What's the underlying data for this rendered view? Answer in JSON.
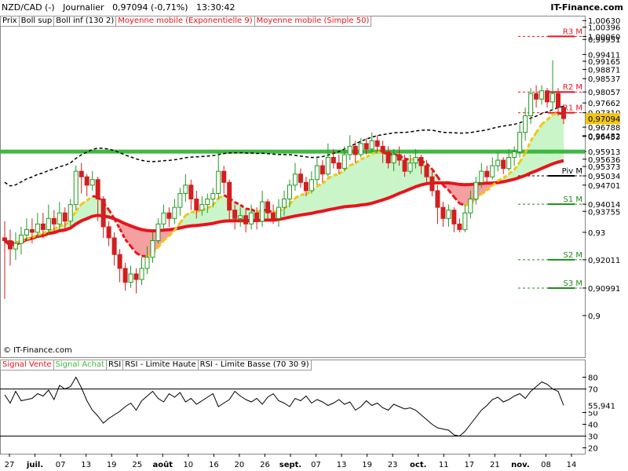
{
  "header": {
    "symbol": "NZD/CAD (-)",
    "period": "Journalier",
    "price_change": "0,97094 (-0,71%)",
    "time": "13:30:42",
    "site": "IT-Finance.com"
  },
  "legend_top": [
    "Prix",
    "Boll sup",
    "Boll inf (130 2)",
    "Moyenne mobile (Exponentielle 9)",
    "Moyenne mobile (Simple 50)"
  ],
  "legend_rsi": [
    "Signal Vente",
    "Signal Achat",
    "RSI",
    "RSI - Limite Haute",
    "RSI - Limite Basse (70 30 9)"
  ],
  "copyright": "© IT-Finance.com",
  "colors": {
    "up": "#1f9a1f",
    "down": "#d21f1f",
    "sma": "#e8141c",
    "support": "#3fb83f",
    "fill_green": "#c9f5c9",
    "fill_red": "#f5a0a0",
    "boll": "#000000",
    "ema_up": "#f2c70f"
  },
  "chart_data": [
    {
      "type": "candlestick",
      "title": "NZD/CAD (-) Journalier",
      "ylim": [
        0.885,
        1.0075
      ],
      "y_ticks": [
        {
          "value": 1.0063,
          "label": "1,00630"
        },
        {
          "value": 1.00396,
          "label": "1,00396"
        },
        {
          "value": 1.0006,
          "label": "1,00060"
        },
        {
          "value": 0.99951,
          "label": "0,99951"
        },
        {
          "value": 0.99411,
          "label": "0,99411"
        },
        {
          "value": 0.99165,
          "label": "0,99165"
        },
        {
          "value": 0.98871,
          "label": "0,98871"
        },
        {
          "value": 0.98537,
          "label": "0,98537"
        },
        {
          "value": 0.98057,
          "label": "0,98057"
        },
        {
          "value": 0.97662,
          "label": "0,97662"
        },
        {
          "value": 0.9731,
          "label": "0,97310"
        },
        {
          "value": 0.96788,
          "label": "0,96788"
        },
        {
          "value": 0.96482,
          "label": "0,96482"
        },
        {
          "value": 0.96453,
          "label": "0,96453"
        },
        {
          "value": 0.95913,
          "label": "0,95913"
        },
        {
          "value": 0.95636,
          "label": "0,95636"
        },
        {
          "value": 0.95373,
          "label": "0,95373"
        },
        {
          "value": 0.95034,
          "label": "0,95034"
        },
        {
          "value": 0.94701,
          "label": "0,94701"
        },
        {
          "value": 0.94014,
          "label": "0,94014"
        },
        {
          "value": 0.93755,
          "label": "0,93755"
        },
        {
          "value": 0.93,
          "label": "0,93"
        },
        {
          "value": 0.92011,
          "label": "0,92011"
        },
        {
          "value": 0.90991,
          "label": "0,90991"
        },
        {
          "value": 0.9,
          "label": "0,9"
        }
      ],
      "current_price": {
        "value": 0.97094,
        "label": "0,97094"
      },
      "support_line": 0.9591,
      "pivots": [
        {
          "label": "R3 M",
          "value": 1.0006,
          "color": "#e8141c"
        },
        {
          "label": "R2 M",
          "value": 0.98057,
          "color": "#e8141c"
        },
        {
          "label": "R1 M",
          "value": 0.9731,
          "color": "#e8141c"
        },
        {
          "label": "Piv M",
          "value": 0.95034,
          "color": "#000000"
        },
        {
          "label": "S1 M",
          "value": 0.94014,
          "color": "#1f8a1f"
        },
        {
          "label": "S2 M",
          "value": 0.92011,
          "color": "#1f8a1f"
        },
        {
          "label": "S3 M",
          "value": 0.90991,
          "color": "#1f8a1f"
        }
      ],
      "x_labels": [
        "27",
        "juil.",
        "07",
        "13",
        "19",
        "25",
        "août",
        "10",
        "16",
        "20",
        "26",
        "sept.",
        "07",
        "13",
        "19",
        "23",
        "oct.",
        "11",
        "17",
        "21",
        "nov.",
        "08",
        "14"
      ],
      "candles": [
        [
          0.928,
          0.927,
          0.934,
          0.906
        ],
        [
          0.927,
          0.924,
          0.931,
          0.918
        ],
        [
          0.924,
          0.926,
          0.93,
          0.92
        ],
        [
          0.926,
          0.929,
          0.932,
          0.922
        ],
        [
          0.929,
          0.931,
          0.935,
          0.927
        ],
        [
          0.931,
          0.93,
          0.935,
          0.926
        ],
        [
          0.93,
          0.933,
          0.937,
          0.928
        ],
        [
          0.933,
          0.931,
          0.937,
          0.928
        ],
        [
          0.931,
          0.935,
          0.94,
          0.929
        ],
        [
          0.935,
          0.933,
          0.938,
          0.93
        ],
        [
          0.933,
          0.937,
          0.941,
          0.931
        ],
        [
          0.937,
          0.934,
          0.939,
          0.931
        ],
        [
          0.934,
          0.94,
          0.942,
          0.932
        ],
        [
          0.94,
          0.952,
          0.954,
          0.938
        ],
        [
          0.952,
          0.95,
          0.955,
          0.944
        ],
        [
          0.95,
          0.947,
          0.951,
          0.943
        ],
        [
          0.947,
          0.949,
          0.952,
          0.945
        ],
        [
          0.949,
          0.942,
          0.95,
          0.934
        ],
        [
          0.942,
          0.932,
          0.943,
          0.928
        ],
        [
          0.932,
          0.928,
          0.934,
          0.925
        ],
        [
          0.928,
          0.922,
          0.93,
          0.918
        ],
        [
          0.922,
          0.917,
          0.924,
          0.912
        ],
        [
          0.917,
          0.912,
          0.919,
          0.909
        ],
        [
          0.912,
          0.915,
          0.918,
          0.91
        ],
        [
          0.915,
          0.913,
          0.917,
          0.908
        ],
        [
          0.913,
          0.917,
          0.921,
          0.911
        ],
        [
          0.917,
          0.921,
          0.925,
          0.915
        ],
        [
          0.921,
          0.927,
          0.93,
          0.919
        ],
        [
          0.927,
          0.933,
          0.935,
          0.926
        ],
        [
          0.933,
          0.937,
          0.94,
          0.931
        ],
        [
          0.937,
          0.935,
          0.939,
          0.932
        ],
        [
          0.935,
          0.939,
          0.942,
          0.933
        ],
        [
          0.939,
          0.944,
          0.946,
          0.936
        ],
        [
          0.944,
          0.947,
          0.951,
          0.941
        ],
        [
          0.947,
          0.942,
          0.949,
          0.938
        ],
        [
          0.942,
          0.938,
          0.945,
          0.935
        ],
        [
          0.938,
          0.94,
          0.943,
          0.936
        ],
        [
          0.94,
          0.942,
          0.944,
          0.937
        ],
        [
          0.942,
          0.944,
          0.946,
          0.939
        ],
        [
          0.944,
          0.952,
          0.959,
          0.942
        ],
        [
          0.952,
          0.948,
          0.954,
          0.944
        ],
        [
          0.948,
          0.938,
          0.949,
          0.934
        ],
        [
          0.938,
          0.935,
          0.94,
          0.931
        ],
        [
          0.935,
          0.936,
          0.939,
          0.932
        ],
        [
          0.936,
          0.933,
          0.938,
          0.93
        ],
        [
          0.933,
          0.937,
          0.94,
          0.931
        ],
        [
          0.937,
          0.934,
          0.939,
          0.931
        ],
        [
          0.934,
          0.941,
          0.945,
          0.932
        ],
        [
          0.941,
          0.937,
          0.942,
          0.934
        ],
        [
          0.937,
          0.935,
          0.94,
          0.933
        ],
        [
          0.935,
          0.939,
          0.942,
          0.932
        ],
        [
          0.939,
          0.942,
          0.945,
          0.936
        ],
        [
          0.942,
          0.947,
          0.949,
          0.939
        ],
        [
          0.947,
          0.951,
          0.955,
          0.945
        ],
        [
          0.951,
          0.948,
          0.953,
          0.946
        ],
        [
          0.948,
          0.945,
          0.95,
          0.943
        ],
        [
          0.945,
          0.949,
          0.952,
          0.944
        ],
        [
          0.949,
          0.954,
          0.957,
          0.947
        ],
        [
          0.954,
          0.951,
          0.956,
          0.948
        ],
        [
          0.951,
          0.957,
          0.962,
          0.95
        ],
        [
          0.957,
          0.955,
          0.96,
          0.953
        ],
        [
          0.955,
          0.953,
          0.958,
          0.951
        ],
        [
          0.953,
          0.958,
          0.961,
          0.952
        ],
        [
          0.958,
          0.961,
          0.965,
          0.956
        ],
        [
          0.961,
          0.958,
          0.963,
          0.955
        ],
        [
          0.958,
          0.962,
          0.964,
          0.957
        ],
        [
          0.962,
          0.96,
          0.964,
          0.958
        ],
        [
          0.96,
          0.963,
          0.966,
          0.959
        ],
        [
          0.963,
          0.961,
          0.965,
          0.959
        ],
        [
          0.961,
          0.959,
          0.963,
          0.955
        ],
        [
          0.959,
          0.955,
          0.961,
          0.953
        ],
        [
          0.955,
          0.958,
          0.96,
          0.952
        ],
        [
          0.958,
          0.956,
          0.961,
          0.954
        ],
        [
          0.956,
          0.952,
          0.958,
          0.95
        ],
        [
          0.952,
          0.955,
          0.958,
          0.951
        ],
        [
          0.955,
          0.957,
          0.96,
          0.953
        ],
        [
          0.957,
          0.954,
          0.958,
          0.951
        ],
        [
          0.954,
          0.95,
          0.956,
          0.948
        ],
        [
          0.95,
          0.945,
          0.952,
          0.943
        ],
        [
          0.945,
          0.939,
          0.947,
          0.933
        ],
        [
          0.939,
          0.935,
          0.941,
          0.932
        ],
        [
          0.935,
          0.938,
          0.94,
          0.932
        ],
        [
          0.938,
          0.933,
          0.939,
          0.93
        ],
        [
          0.933,
          0.931,
          0.935,
          0.93
        ],
        [
          0.931,
          0.937,
          0.94,
          0.93
        ],
        [
          0.937,
          0.942,
          0.945,
          0.935
        ],
        [
          0.942,
          0.948,
          0.95,
          0.94
        ],
        [
          0.948,
          0.952,
          0.955,
          0.946
        ],
        [
          0.952,
          0.95,
          0.954,
          0.948
        ],
        [
          0.95,
          0.954,
          0.957,
          0.949
        ],
        [
          0.954,
          0.956,
          0.959,
          0.952
        ],
        [
          0.956,
          0.953,
          0.957,
          0.951
        ],
        [
          0.953,
          0.957,
          0.96,
          0.952
        ],
        [
          0.957,
          0.959,
          0.961,
          0.954
        ],
        [
          0.959,
          0.966,
          0.969,
          0.957
        ],
        [
          0.966,
          0.972,
          0.975,
          0.963
        ],
        [
          0.972,
          0.98,
          0.982,
          0.969
        ],
        [
          0.98,
          0.978,
          0.983,
          0.975
        ],
        [
          0.978,
          0.981,
          0.983,
          0.976
        ],
        [
          0.981,
          0.977,
          0.982,
          0.975
        ],
        [
          0.977,
          0.98,
          0.992,
          0.974
        ],
        [
          0.98,
          0.975,
          0.982,
          0.972
        ],
        [
          0.975,
          0.971,
          0.976,
          0.969
        ]
      ]
    },
    {
      "type": "line",
      "title": "RSI (70 30 9)",
      "ylim": [
        15,
        95
      ],
      "y_ticks": [
        80,
        70,
        50,
        40,
        30,
        20
      ],
      "upper_limit": 70,
      "lower_limit": 30,
      "last_value": {
        "value": 55.941,
        "label": "55,941"
      },
      "values": [
        65,
        58,
        68,
        60,
        61,
        62,
        66,
        64,
        69,
        61,
        73,
        70,
        72,
        80,
        71,
        60,
        52,
        47,
        41,
        45,
        48,
        51,
        55,
        58,
        52,
        60,
        64,
        68,
        62,
        59,
        66,
        63,
        67,
        59,
        62,
        57,
        60,
        63,
        66,
        55,
        58,
        61,
        68,
        64,
        61,
        59,
        62,
        57,
        63,
        66,
        60,
        58,
        55,
        62,
        60,
        64,
        58,
        61,
        59,
        56,
        58,
        61,
        57,
        59,
        52,
        55,
        60,
        56,
        58,
        54,
        52,
        57,
        55,
        53,
        54,
        52,
        48,
        44,
        40,
        37,
        36,
        35,
        31,
        30,
        34,
        40,
        46,
        52,
        56,
        61,
        63,
        59,
        61,
        64,
        66,
        62,
        68,
        72,
        76,
        74,
        70,
        68,
        56
      ]
    }
  ]
}
